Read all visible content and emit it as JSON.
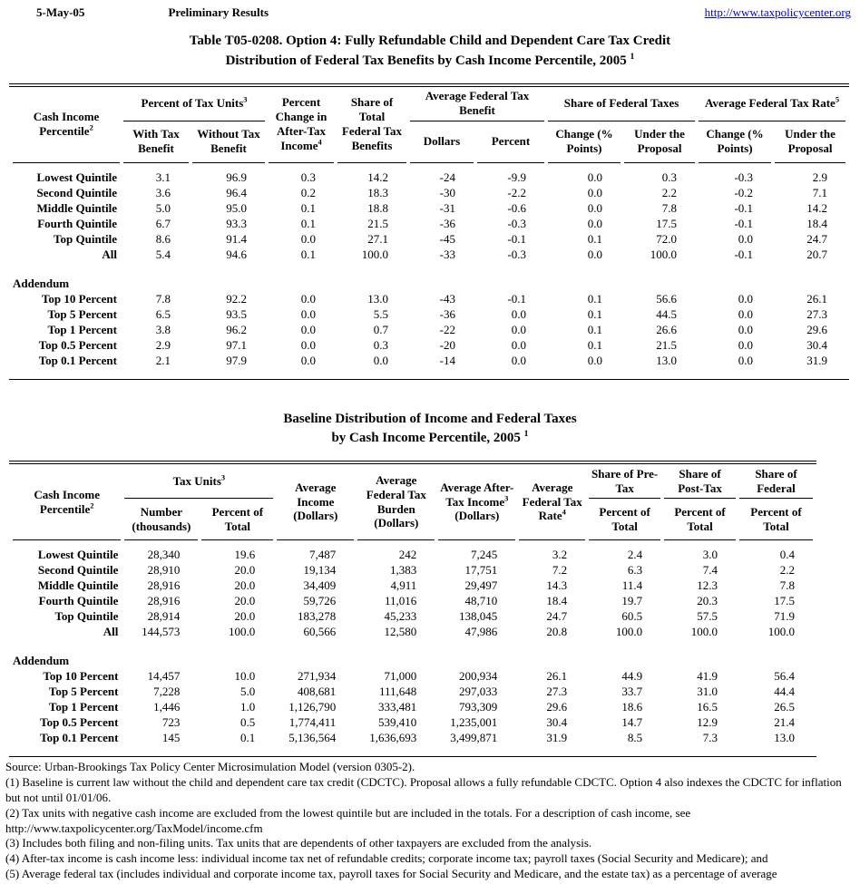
{
  "page_header": {
    "date": "5-May-05",
    "status": "Preliminary Results",
    "link": "http://www.taxpolicycenter.org"
  },
  "table1": {
    "title_line1": "Table T05-0208. Option 4: Fully Refundable Child and Dependent Care Tax Credit",
    "title_line2": "Distribution of Federal Tax Benefits by Cash Income Percentile, 2005",
    "title_sup": "1",
    "header": {
      "label": {
        "text": "Cash Income Percentile",
        "sup": "2"
      },
      "groups": [
        {
          "text": "Percent of Tax Units",
          "sup": "3"
        },
        {
          "text": "Percent Change in After-Tax Income",
          "sup": "4"
        },
        {
          "text": "Share of Total Federal Tax Benefits"
        },
        {
          "text": "Average Federal Tax Benefit"
        },
        {
          "text": "Share of Federal Taxes"
        },
        {
          "text": "Average Federal Tax Rate",
          "sup": "5"
        }
      ],
      "subs": [
        "With Tax Benefit",
        "Without Tax Benefit",
        "Dollars",
        "Percent",
        "Change (% Points)",
        "Under the Proposal",
        "Change (% Points)",
        "Under the Proposal"
      ]
    },
    "rows": [
      {
        "label": "Lowest Quintile",
        "values": [
          "3.1",
          "96.9",
          "0.3",
          "14.2",
          "-24",
          "-9.9",
          "0.0",
          "0.3",
          "-0.3",
          "2.9"
        ]
      },
      {
        "label": "Second Quintile",
        "values": [
          "3.6",
          "96.4",
          "0.2",
          "18.3",
          "-30",
          "-2.2",
          "0.0",
          "2.2",
          "-0.2",
          "7.1"
        ]
      },
      {
        "label": "Middle Quintile",
        "values": [
          "5.0",
          "95.0",
          "0.1",
          "18.8",
          "-31",
          "-0.6",
          "0.0",
          "7.8",
          "-0.1",
          "14.2"
        ]
      },
      {
        "label": "Fourth Quintile",
        "values": [
          "6.7",
          "93.3",
          "0.1",
          "21.5",
          "-36",
          "-0.3",
          "0.0",
          "17.5",
          "-0.1",
          "18.4"
        ]
      },
      {
        "label": "Top Quintile",
        "values": [
          "8.6",
          "91.4",
          "0.0",
          "27.1",
          "-45",
          "-0.1",
          "0.1",
          "72.0",
          "0.0",
          "24.7"
        ]
      },
      {
        "label": "All",
        "values": [
          "5.4",
          "94.6",
          "0.1",
          "100.0",
          "-33",
          "-0.3",
          "0.0",
          "100.0",
          "-0.1",
          "20.7"
        ]
      }
    ],
    "addendum_label": "Addendum",
    "addendum_rows": [
      {
        "label": "Top 10 Percent",
        "values": [
          "7.8",
          "92.2",
          "0.0",
          "13.0",
          "-43",
          "-0.1",
          "0.1",
          "56.6",
          "0.0",
          "26.1"
        ]
      },
      {
        "label": "Top 5 Percent",
        "values": [
          "6.5",
          "93.5",
          "0.0",
          "5.5",
          "-36",
          "0.0",
          "0.1",
          "44.5",
          "0.0",
          "27.3"
        ]
      },
      {
        "label": "Top 1 Percent",
        "values": [
          "3.8",
          "96.2",
          "0.0",
          "0.7",
          "-22",
          "0.0",
          "0.1",
          "26.6",
          "0.0",
          "29.6"
        ]
      },
      {
        "label": "Top 0.5 Percent",
        "values": [
          "2.9",
          "97.1",
          "0.0",
          "0.3",
          "-20",
          "0.0",
          "0.1",
          "21.5",
          "0.0",
          "30.4"
        ]
      },
      {
        "label": "Top 0.1 Percent",
        "values": [
          "2.1",
          "97.9",
          "0.0",
          "0.0",
          "-14",
          "0.0",
          "0.0",
          "13.0",
          "0.0",
          "31.9"
        ]
      }
    ]
  },
  "table2": {
    "title_line1": "Baseline Distribution of Income and Federal Taxes",
    "title_line2": "by Cash Income Percentile, 2005",
    "title_sup": "1",
    "header": {
      "label": {
        "text": "Cash Income Percentile",
        "sup": "2"
      },
      "groups": [
        {
          "text": "Tax Units",
          "sup": "3"
        },
        {
          "text": "Average Income (Dollars)"
        },
        {
          "text": "Average Federal Tax Burden (Dollars)"
        },
        {
          "text": "Average After-Tax Income",
          "sup": "3",
          "text2": "(Dollars)"
        },
        {
          "text": "Average Federal Tax Rate",
          "sup": "4"
        },
        {
          "text": "Share of Pre-Tax"
        },
        {
          "text": "Share of Post-Tax"
        },
        {
          "text": "Share of Federal"
        }
      ],
      "subs": [
        "Number (thousands)",
        "Percent of Total",
        "Percent of Total",
        "Percent of Total",
        "Percent of Total"
      ]
    },
    "rows": [
      {
        "label": "Lowest Quintile",
        "values": [
          "28,340",
          "19.6",
          "7,487",
          "242",
          "7,245",
          "3.2",
          "2.4",
          "3.0",
          "0.4"
        ]
      },
      {
        "label": "Second Quintile",
        "values": [
          "28,910",
          "20.0",
          "19,134",
          "1,383",
          "17,751",
          "7.2",
          "6.3",
          "7.4",
          "2.2"
        ]
      },
      {
        "label": "Middle Quintile",
        "values": [
          "28,916",
          "20.0",
          "34,409",
          "4,911",
          "29,497",
          "14.3",
          "11.4",
          "12.3",
          "7.8"
        ]
      },
      {
        "label": "Fourth Quintile",
        "values": [
          "28,916",
          "20.0",
          "59,726",
          "11,016",
          "48,710",
          "18.4",
          "19.7",
          "20.3",
          "17.5"
        ]
      },
      {
        "label": "Top Quintile",
        "values": [
          "28,914",
          "20.0",
          "183,278",
          "45,233",
          "138,045",
          "24.7",
          "60.5",
          "57.5",
          "71.9"
        ]
      },
      {
        "label": "All",
        "values": [
          "144,573",
          "100.0",
          "60,566",
          "12,580",
          "47,986",
          "20.8",
          "100.0",
          "100.0",
          "100.0"
        ]
      }
    ],
    "addendum_label": "Addendum",
    "addendum_rows": [
      {
        "label": "Top 10 Percent",
        "values": [
          "14,457",
          "10.0",
          "271,934",
          "71,000",
          "200,934",
          "26.1",
          "44.9",
          "41.9",
          "56.4"
        ]
      },
      {
        "label": "Top 5 Percent",
        "values": [
          "7,228",
          "5.0",
          "408,681",
          "111,648",
          "297,033",
          "27.3",
          "33.7",
          "31.0",
          "44.4"
        ]
      },
      {
        "label": "Top 1 Percent",
        "values": [
          "1,446",
          "1.0",
          "1,126,790",
          "333,481",
          "793,309",
          "29.6",
          "18.6",
          "16.5",
          "26.5"
        ]
      },
      {
        "label": "Top 0.5 Percent",
        "values": [
          "723",
          "0.5",
          "1,774,411",
          "539,410",
          "1,235,001",
          "30.4",
          "14.7",
          "12.9",
          "21.4"
        ]
      },
      {
        "label": "Top 0.1 Percent",
        "values": [
          "145",
          "0.1",
          "5,136,564",
          "1,636,693",
          "3,499,871",
          "31.9",
          "8.5",
          "7.3",
          "13.0"
        ]
      }
    ]
  },
  "footnotes": [
    "Source: Urban-Brookings Tax Policy Center Microsimulation Model (version 0305-2).",
    "(1) Baseline is current law without the child and dependent care tax credit (CDCTC).  Proposal allows a fully refundable CDCTC. Option 4 also indexes the CDCTC for inflation but not until 01/01/06.",
    "(2) Tax units with negative cash income are excluded from the lowest quintile but are included in the totals. For a description of cash income, see http://www.taxpolicycenter.org/TaxModel/income.cfm",
    "(3) Includes both filing and non-filing units.  Tax units that are dependents of other taxpayers are excluded from the analysis.",
    "(4) After-tax income is cash income less: individual income tax net of refundable credits; corporate income tax; payroll taxes (Social Security and Medicare); and",
    "(5) Average federal tax (includes individual and corporate income tax, payroll taxes for Social Security and Medicare, and the estate tax) as a percentage of average"
  ]
}
